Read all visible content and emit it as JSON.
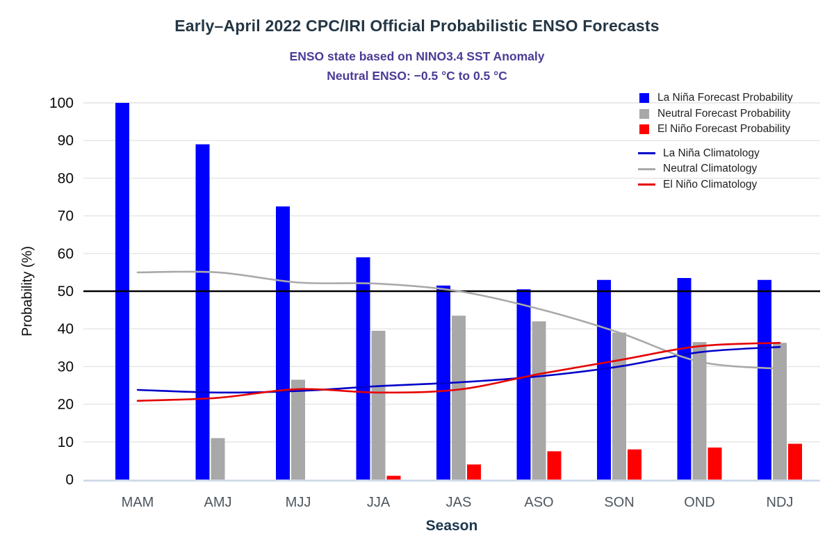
{
  "chart_data": {
    "type": "bar",
    "title": "Early–April 2022 CPC/IRI Official Probabilistic ENSO Forecasts",
    "subtitle1": "ENSO state based on NINO3.4 SST Anomaly",
    "subtitle2": "Neutral ENSO: −0.5 °C to 0.5 °C",
    "xlabel": "Season",
    "ylabel": "Probability (%)",
    "categories": [
      "MAM",
      "AMJ",
      "MJJ",
      "JJA",
      "JAS",
      "ASO",
      "SON",
      "OND",
      "NDJ"
    ],
    "series": [
      {
        "name": "La Niña Forecast Probability",
        "type": "bar",
        "color": "#0000ff",
        "values": [
          100,
          89,
          72.5,
          59,
          51.5,
          50.5,
          53,
          53.5,
          53
        ]
      },
      {
        "name": "Neutral Forecast Probability",
        "type": "bar",
        "color": "#a8a8a8",
        "values": [
          0,
          11,
          26.5,
          39.5,
          43.5,
          42,
          39,
          36.5,
          36.3
        ]
      },
      {
        "name": "El Niño Forecast Probability",
        "type": "bar",
        "color": "#ff0000",
        "values": [
          0,
          0,
          0,
          1,
          4,
          7.5,
          8,
          8.5,
          9.5
        ]
      },
      {
        "name": "La Niña Climatology",
        "type": "line",
        "color": "#0000c8",
        "values": [
          23.8,
          23.1,
          23.5,
          24.8,
          25.8,
          27.4,
          30,
          33.8,
          35.2
        ]
      },
      {
        "name": "Neutral Climatology",
        "type": "line",
        "color": "#a9a9a9",
        "values": [
          55,
          55,
          52.3,
          52,
          50,
          45.3,
          39,
          31.3,
          29.4
        ]
      },
      {
        "name": "El Niño Climatology",
        "type": "line",
        "color": "#e60000",
        "values": [
          20.9,
          21.7,
          24,
          23.1,
          23.9,
          28,
          31.7,
          35.4,
          36.3
        ]
      }
    ],
    "ylim": [
      0,
      100
    ],
    "yticks": [
      0,
      10,
      20,
      30,
      40,
      50,
      60,
      70,
      80,
      90,
      100
    ],
    "reference_line_y": 50,
    "grid": true,
    "legend_position": "top-right"
  }
}
